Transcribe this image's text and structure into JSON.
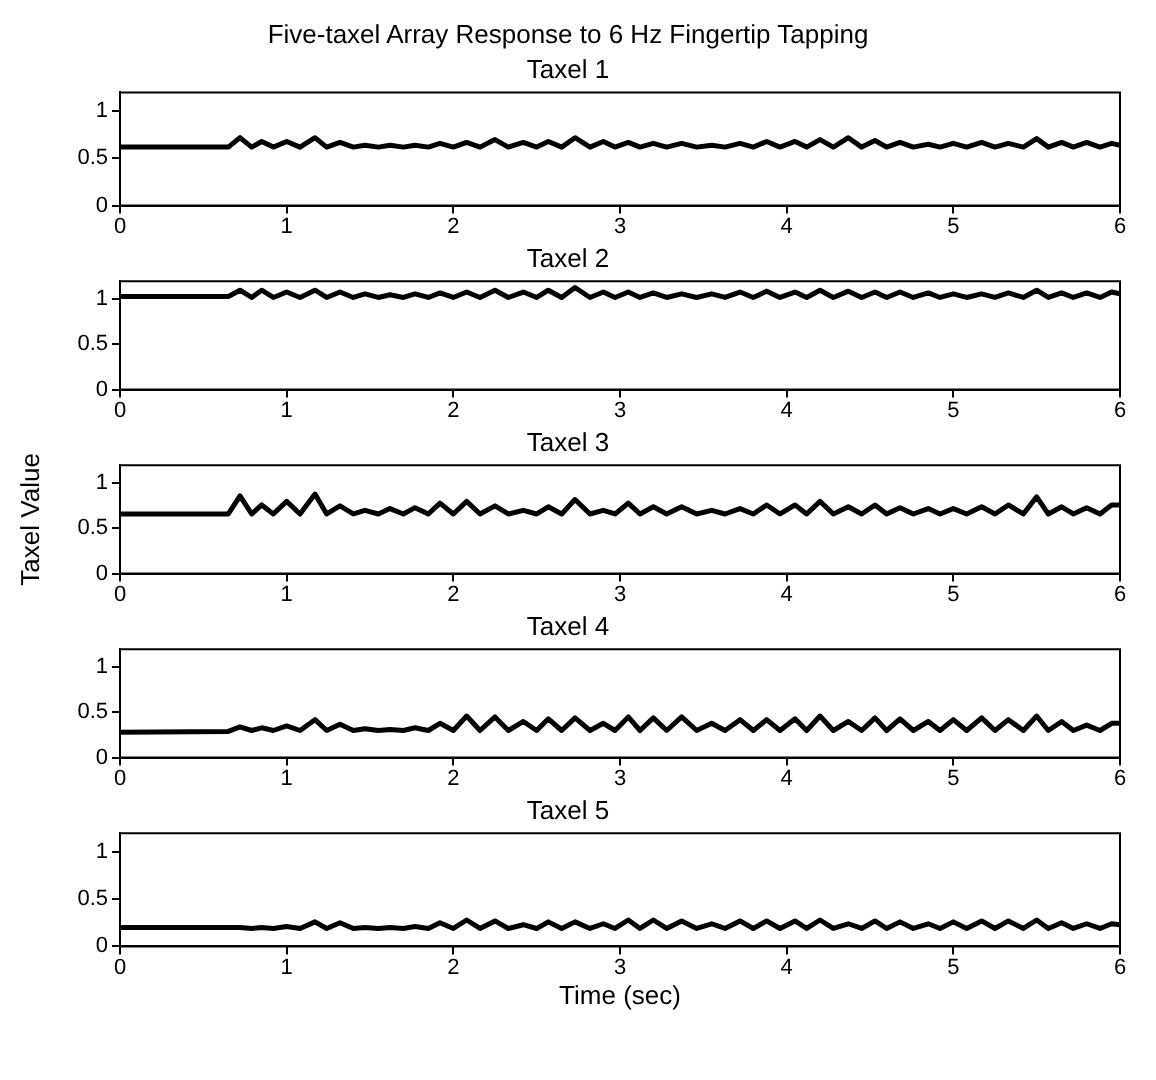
{
  "chart_data": [
    {
      "type": "line",
      "title": "Five-taxel Array Response to 6 Hz Fingertip Tapping",
      "subtitle": "Taxel 1",
      "color": "#000000",
      "xlim": [
        0,
        6
      ],
      "xticks": [
        0,
        1,
        2,
        3,
        4,
        5,
        6
      ],
      "ylim": [
        0,
        1.2
      ],
      "yticks": [
        0,
        0.5,
        1
      ],
      "grid": false,
      "marker": "none",
      "line_style": "solid",
      "x": [
        0,
        0.65,
        0.72,
        0.79,
        0.85,
        0.92,
        1.0,
        1.08,
        1.17,
        1.24,
        1.32,
        1.4,
        1.47,
        1.55,
        1.62,
        1.7,
        1.77,
        1.85,
        1.92,
        2.0,
        2.08,
        2.16,
        2.25,
        2.33,
        2.42,
        2.5,
        2.57,
        2.65,
        2.73,
        2.82,
        2.9,
        2.97,
        3.05,
        3.12,
        3.2,
        3.28,
        3.37,
        3.46,
        3.55,
        3.63,
        3.72,
        3.8,
        3.88,
        3.96,
        4.05,
        4.12,
        4.2,
        4.28,
        4.37,
        4.45,
        4.53,
        4.6,
        4.68,
        4.76,
        4.85,
        4.92,
        5.0,
        5.08,
        5.17,
        5.25,
        5.33,
        5.42,
        5.5,
        5.57,
        5.65,
        5.72,
        5.8,
        5.88,
        5.95,
        6.0
      ],
      "values": [
        0.62,
        0.62,
        0.72,
        0.62,
        0.68,
        0.62,
        0.68,
        0.62,
        0.72,
        0.62,
        0.67,
        0.62,
        0.64,
        0.62,
        0.64,
        0.62,
        0.64,
        0.62,
        0.66,
        0.62,
        0.67,
        0.62,
        0.7,
        0.62,
        0.67,
        0.62,
        0.68,
        0.62,
        0.72,
        0.62,
        0.68,
        0.62,
        0.67,
        0.62,
        0.66,
        0.62,
        0.66,
        0.62,
        0.64,
        0.62,
        0.66,
        0.62,
        0.68,
        0.62,
        0.68,
        0.62,
        0.7,
        0.62,
        0.72,
        0.62,
        0.69,
        0.62,
        0.67,
        0.62,
        0.65,
        0.62,
        0.66,
        0.62,
        0.67,
        0.62,
        0.66,
        0.62,
        0.71,
        0.62,
        0.67,
        0.62,
        0.67,
        0.62,
        0.66,
        0.64
      ]
    },
    {
      "type": "line",
      "title": "Taxel 2",
      "color": "#000000",
      "xlim": [
        0,
        6
      ],
      "xticks": [
        0,
        1,
        2,
        3,
        4,
        5,
        6
      ],
      "ylim": [
        0,
        1.2
      ],
      "yticks": [
        0,
        0.5,
        1
      ],
      "grid": false,
      "marker": "none",
      "line_style": "solid",
      "x": [
        0,
        0.65,
        0.72,
        0.79,
        0.85,
        0.92,
        1.0,
        1.08,
        1.17,
        1.24,
        1.32,
        1.4,
        1.47,
        1.55,
        1.62,
        1.7,
        1.77,
        1.85,
        1.92,
        2.0,
        2.08,
        2.16,
        2.25,
        2.33,
        2.42,
        2.5,
        2.57,
        2.65,
        2.73,
        2.82,
        2.9,
        2.97,
        3.05,
        3.12,
        3.2,
        3.28,
        3.37,
        3.46,
        3.55,
        3.63,
        3.72,
        3.8,
        3.88,
        3.96,
        4.05,
        4.12,
        4.2,
        4.28,
        4.37,
        4.45,
        4.53,
        4.6,
        4.68,
        4.76,
        4.85,
        4.92,
        5.0,
        5.08,
        5.17,
        5.25,
        5.33,
        5.42,
        5.5,
        5.57,
        5.65,
        5.72,
        5.8,
        5.88,
        5.95,
        6.0
      ],
      "values": [
        1.03,
        1.03,
        1.1,
        1.02,
        1.1,
        1.02,
        1.08,
        1.02,
        1.1,
        1.02,
        1.08,
        1.02,
        1.06,
        1.02,
        1.05,
        1.02,
        1.06,
        1.02,
        1.07,
        1.02,
        1.08,
        1.02,
        1.1,
        1.02,
        1.08,
        1.02,
        1.1,
        1.02,
        1.13,
        1.02,
        1.08,
        1.02,
        1.08,
        1.02,
        1.07,
        1.02,
        1.06,
        1.02,
        1.06,
        1.02,
        1.08,
        1.02,
        1.09,
        1.02,
        1.08,
        1.02,
        1.1,
        1.02,
        1.09,
        1.02,
        1.08,
        1.02,
        1.08,
        1.02,
        1.07,
        1.02,
        1.06,
        1.02,
        1.06,
        1.02,
        1.07,
        1.02,
        1.1,
        1.02,
        1.07,
        1.02,
        1.07,
        1.02,
        1.08,
        1.06
      ]
    },
    {
      "type": "line",
      "title": "Taxel 3",
      "ylabel": "Taxel Value",
      "color": "#000000",
      "xlim": [
        0,
        6
      ],
      "xticks": [
        0,
        1,
        2,
        3,
        4,
        5,
        6
      ],
      "ylim": [
        0,
        1.2
      ],
      "yticks": [
        0,
        0.5,
        1
      ],
      "grid": false,
      "marker": "none",
      "line_style": "solid",
      "x": [
        0,
        0.65,
        0.72,
        0.79,
        0.85,
        0.92,
        1.0,
        1.08,
        1.17,
        1.24,
        1.32,
        1.4,
        1.47,
        1.55,
        1.62,
        1.7,
        1.77,
        1.85,
        1.92,
        2.0,
        2.08,
        2.16,
        2.25,
        2.33,
        2.42,
        2.5,
        2.57,
        2.65,
        2.73,
        2.82,
        2.9,
        2.97,
        3.05,
        3.12,
        3.2,
        3.28,
        3.37,
        3.46,
        3.55,
        3.63,
        3.72,
        3.8,
        3.88,
        3.96,
        4.05,
        4.12,
        4.2,
        4.28,
        4.37,
        4.45,
        4.53,
        4.6,
        4.68,
        4.76,
        4.85,
        4.92,
        5.0,
        5.08,
        5.17,
        5.25,
        5.33,
        5.42,
        5.5,
        5.57,
        5.65,
        5.72,
        5.8,
        5.88,
        5.95,
        6.0
      ],
      "values": [
        0.66,
        0.66,
        0.86,
        0.66,
        0.76,
        0.66,
        0.8,
        0.66,
        0.88,
        0.66,
        0.75,
        0.66,
        0.7,
        0.66,
        0.72,
        0.66,
        0.73,
        0.66,
        0.78,
        0.66,
        0.8,
        0.66,
        0.75,
        0.66,
        0.7,
        0.66,
        0.74,
        0.66,
        0.82,
        0.66,
        0.7,
        0.66,
        0.78,
        0.66,
        0.74,
        0.66,
        0.74,
        0.66,
        0.7,
        0.66,
        0.72,
        0.66,
        0.76,
        0.66,
        0.76,
        0.66,
        0.8,
        0.66,
        0.74,
        0.66,
        0.76,
        0.66,
        0.73,
        0.66,
        0.72,
        0.66,
        0.72,
        0.66,
        0.74,
        0.66,
        0.76,
        0.66,
        0.85,
        0.66,
        0.74,
        0.66,
        0.73,
        0.66,
        0.76,
        0.76
      ]
    },
    {
      "type": "line",
      "title": "Taxel 4",
      "color": "#000000",
      "xlim": [
        0,
        6
      ],
      "xticks": [
        0,
        1,
        2,
        3,
        4,
        5,
        6
      ],
      "ylim": [
        0,
        1.2
      ],
      "yticks": [
        0,
        0.5,
        1
      ],
      "grid": false,
      "marker": "none",
      "line_style": "solid",
      "x": [
        0,
        0.65,
        0.72,
        0.79,
        0.85,
        0.92,
        1.0,
        1.08,
        1.17,
        1.24,
        1.32,
        1.4,
        1.47,
        1.55,
        1.62,
        1.7,
        1.77,
        1.85,
        1.92,
        2.0,
        2.08,
        2.16,
        2.25,
        2.33,
        2.42,
        2.5,
        2.57,
        2.65,
        2.73,
        2.82,
        2.9,
        2.97,
        3.05,
        3.12,
        3.2,
        3.28,
        3.37,
        3.46,
        3.55,
        3.63,
        3.72,
        3.8,
        3.88,
        3.96,
        4.05,
        4.12,
        4.2,
        4.28,
        4.37,
        4.45,
        4.53,
        4.6,
        4.68,
        4.76,
        4.85,
        4.92,
        5.0,
        5.08,
        5.17,
        5.25,
        5.33,
        5.42,
        5.5,
        5.57,
        5.65,
        5.72,
        5.8,
        5.88,
        5.95,
        6.0
      ],
      "values": [
        0.28,
        0.29,
        0.34,
        0.3,
        0.33,
        0.3,
        0.35,
        0.3,
        0.42,
        0.3,
        0.37,
        0.3,
        0.32,
        0.3,
        0.31,
        0.3,
        0.33,
        0.3,
        0.38,
        0.3,
        0.46,
        0.3,
        0.45,
        0.3,
        0.4,
        0.3,
        0.43,
        0.3,
        0.44,
        0.3,
        0.38,
        0.3,
        0.45,
        0.3,
        0.44,
        0.3,
        0.45,
        0.3,
        0.38,
        0.3,
        0.42,
        0.3,
        0.42,
        0.3,
        0.43,
        0.3,
        0.46,
        0.3,
        0.4,
        0.3,
        0.44,
        0.3,
        0.43,
        0.3,
        0.4,
        0.3,
        0.42,
        0.3,
        0.44,
        0.3,
        0.42,
        0.3,
        0.46,
        0.3,
        0.4,
        0.3,
        0.36,
        0.3,
        0.38,
        0.38
      ]
    },
    {
      "type": "line",
      "title": "Taxel 5",
      "xlabel": "Time (sec)",
      "color": "#000000",
      "xlim": [
        0,
        6
      ],
      "xticks": [
        0,
        1,
        2,
        3,
        4,
        5,
        6
      ],
      "ylim": [
        0,
        1.2
      ],
      "yticks": [
        0,
        0.5,
        1
      ],
      "grid": false,
      "marker": "none",
      "line_style": "solid",
      "x": [
        0,
        0.65,
        0.72,
        0.79,
        0.85,
        0.92,
        1.0,
        1.08,
        1.17,
        1.24,
        1.32,
        1.4,
        1.47,
        1.55,
        1.62,
        1.7,
        1.77,
        1.85,
        1.92,
        2.0,
        2.08,
        2.16,
        2.25,
        2.33,
        2.42,
        2.5,
        2.57,
        2.65,
        2.73,
        2.82,
        2.9,
        2.97,
        3.05,
        3.12,
        3.2,
        3.28,
        3.37,
        3.46,
        3.55,
        3.63,
        3.72,
        3.8,
        3.88,
        3.96,
        4.05,
        4.12,
        4.2,
        4.28,
        4.37,
        4.45,
        4.53,
        4.6,
        4.68,
        4.76,
        4.85,
        4.92,
        5.0,
        5.08,
        5.17,
        5.25,
        5.33,
        5.42,
        5.5,
        5.57,
        5.65,
        5.72,
        5.8,
        5.88,
        5.95,
        6.0
      ],
      "values": [
        0.2,
        0.2,
        0.2,
        0.19,
        0.2,
        0.19,
        0.21,
        0.19,
        0.26,
        0.19,
        0.25,
        0.19,
        0.2,
        0.19,
        0.2,
        0.19,
        0.21,
        0.19,
        0.25,
        0.19,
        0.28,
        0.19,
        0.27,
        0.19,
        0.23,
        0.19,
        0.26,
        0.19,
        0.26,
        0.19,
        0.24,
        0.19,
        0.28,
        0.19,
        0.28,
        0.19,
        0.27,
        0.19,
        0.24,
        0.19,
        0.27,
        0.19,
        0.27,
        0.19,
        0.27,
        0.19,
        0.28,
        0.19,
        0.24,
        0.19,
        0.27,
        0.19,
        0.26,
        0.19,
        0.24,
        0.19,
        0.26,
        0.19,
        0.27,
        0.19,
        0.27,
        0.19,
        0.28,
        0.19,
        0.25,
        0.19,
        0.24,
        0.19,
        0.24,
        0.23
      ]
    }
  ]
}
